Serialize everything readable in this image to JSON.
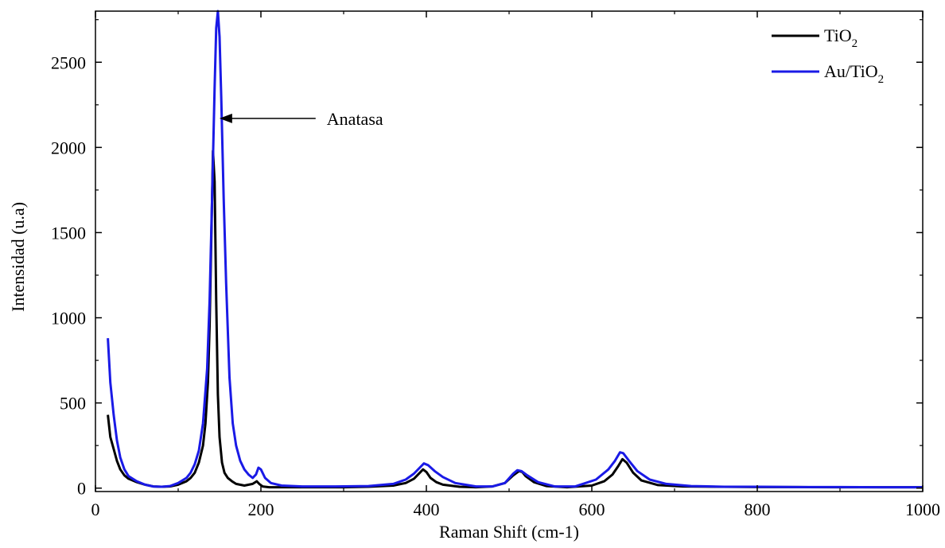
{
  "chart_data": {
    "type": "line",
    "xlabel": "Raman Shift (cm-1)",
    "ylabel": "Intensidad (u.a)",
    "xlim": [
      0,
      1000
    ],
    "ylim": [
      -20,
      2800
    ],
    "xticks": [
      0,
      200,
      400,
      600,
      800,
      1000
    ],
    "yticks": [
      0,
      500,
      1000,
      1500,
      2000,
      2500
    ],
    "xtick_labels": [
      "0",
      "200",
      "400",
      "600",
      "800",
      "1000"
    ],
    "ytick_labels": [
      "0",
      "500",
      "1000",
      "1500",
      "2000",
      "2500"
    ],
    "grid": false,
    "legend_position": "top-right",
    "series": [
      {
        "name": "TiO2",
        "legend_main": "TiO",
        "legend_sub": "2",
        "color": "#000000",
        "x": [
          15,
          18,
          22,
          26,
          30,
          35,
          40,
          50,
          60,
          70,
          80,
          90,
          100,
          110,
          115,
          120,
          125,
          130,
          133,
          136,
          138,
          140,
          142,
          144,
          146,
          148,
          150,
          153,
          156,
          160,
          165,
          170,
          180,
          190,
          195,
          198,
          202,
          210,
          230,
          260,
          300,
          330,
          360,
          375,
          385,
          392,
          396,
          400,
          405,
          412,
          420,
          440,
          460,
          480,
          495,
          505,
          512,
          516,
          520,
          530,
          545,
          570,
          600,
          615,
          625,
          632,
          637,
          642,
          650,
          660,
          680,
          710,
          750,
          800,
          850,
          900,
          950,
          1000
        ],
        "y": [
          430,
          300,
          230,
          160,
          110,
          75,
          55,
          35,
          20,
          10,
          8,
          10,
          20,
          40,
          60,
          90,
          150,
          250,
          380,
          620,
          950,
          1450,
          1980,
          1800,
          1100,
          550,
          300,
          150,
          90,
          60,
          40,
          25,
          15,
          25,
          40,
          25,
          10,
          5,
          5,
          5,
          5,
          8,
          15,
          30,
          55,
          90,
          110,
          95,
          60,
          35,
          20,
          8,
          5,
          10,
          30,
          75,
          100,
          95,
          70,
          35,
          12,
          5,
          15,
          40,
          80,
          130,
          170,
          150,
          90,
          45,
          18,
          10,
          8,
          6,
          6,
          5,
          5,
          5
        ]
      },
      {
        "name": "Au/TiO2",
        "legend_main": "Au/TiO",
        "legend_sub": "2",
        "color": "#1a1ae6",
        "x": [
          15,
          18,
          22,
          26,
          30,
          35,
          40,
          50,
          60,
          70,
          80,
          90,
          100,
          110,
          115,
          120,
          125,
          130,
          135,
          138,
          141,
          144,
          146,
          148,
          150,
          152,
          155,
          158,
          162,
          166,
          170,
          175,
          180,
          185,
          190,
          194,
          197,
          200,
          205,
          212,
          225,
          250,
          290,
          330,
          360,
          375,
          385,
          392,
          397,
          402,
          410,
          420,
          435,
          460,
          480,
          495,
          505,
          510,
          515,
          522,
          535,
          555,
          580,
          605,
          620,
          628,
          634,
          638,
          645,
          655,
          670,
          690,
          720,
          760,
          800,
          850,
          900,
          950,
          1000
        ],
        "y": [
          880,
          620,
          430,
          280,
          180,
          110,
          70,
          40,
          20,
          10,
          8,
          12,
          30,
          60,
          90,
          140,
          220,
          380,
          700,
          1100,
          1700,
          2350,
          2700,
          2800,
          2650,
          2300,
          1700,
          1200,
          650,
          380,
          250,
          160,
          110,
          80,
          60,
          80,
          120,
          110,
          60,
          30,
          15,
          10,
          10,
          12,
          25,
          50,
          85,
          120,
          145,
          135,
          100,
          65,
          30,
          10,
          10,
          30,
          85,
          105,
          100,
          75,
          35,
          10,
          10,
          50,
          110,
          160,
          210,
          205,
          160,
          100,
          50,
          25,
          12,
          8,
          8,
          6,
          6,
          5,
          5
        ]
      }
    ],
    "annotations": [
      {
        "text": "Anatasa",
        "arrow_to": [
          146,
          2170
        ],
        "text_at": [
          270,
          2170
        ]
      }
    ]
  }
}
